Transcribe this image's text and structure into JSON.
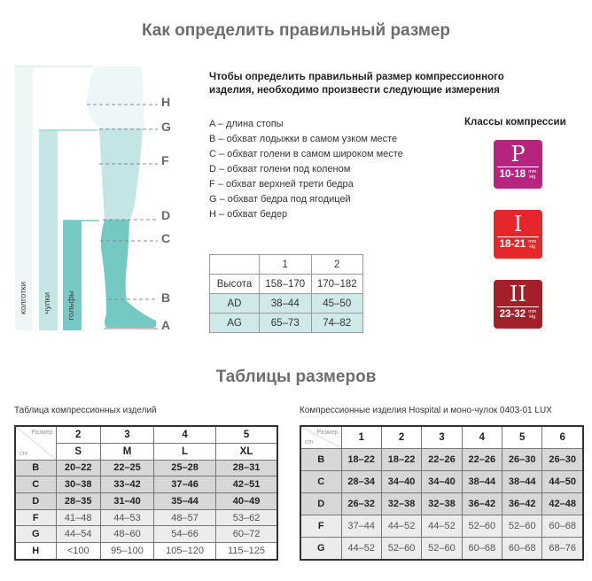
{
  "title": "Как определить правильный размер",
  "diagram": {
    "bars": [
      "колготки",
      "чулки",
      "гольфы"
    ],
    "points": [
      "H",
      "G",
      "F",
      "D",
      "C",
      "B",
      "A"
    ],
    "colors": {
      "tights": "#eef6f6",
      "stockings": "#c4e4e4",
      "knee": "#74c9c3"
    }
  },
  "intro": "Чтобы определить правильный размер компрессионного изделия, необходимо произвести следующие измерения",
  "measurements": [
    "A – длина стопы",
    "B – обхват лодыжки в самом узком месте",
    "C – обхват голени в самом широком месте",
    "D – обхват голени под коленом",
    "F – обхват верхней трети бедра",
    "G – обхват бедра под ягодицей",
    "H – обхват бедер"
  ],
  "height_table": {
    "header": [
      "",
      "1",
      "2"
    ],
    "rows": [
      [
        "Высота",
        "158–170",
        "170–182"
      ],
      [
        "AD",
        "38–44",
        "45–50"
      ],
      [
        "AG",
        "65–73",
        "74–82"
      ]
    ]
  },
  "compression": {
    "title": "Классы компрессии",
    "unit_top": "mm",
    "unit_bottom": "Hg",
    "classes": [
      {
        "symbol": "P",
        "range": "10-18",
        "color": "#b5247f"
      },
      {
        "symbol": "I",
        "range": "18-21",
        "color": "#e5262b"
      },
      {
        "symbol": "II",
        "range": "23-32",
        "color": "#a51f2b"
      }
    ]
  },
  "tables_title": "Таблицы размеров",
  "table1": {
    "caption": "Таблица компрессионных изделий",
    "corner_top": "Размер",
    "corner_bottom": "cm",
    "sizes": [
      "2",
      "3",
      "4",
      "5"
    ],
    "letters": [
      "S",
      "M",
      "L",
      "XL"
    ],
    "rows": [
      [
        "B",
        "20–22",
        "22–25",
        "25–28",
        "28–31"
      ],
      [
        "C",
        "30–38",
        "33–42",
        "37–46",
        "42–51"
      ],
      [
        "D",
        "28–35",
        "31–40",
        "35–44",
        "40–49"
      ],
      [
        "F",
        "41–48",
        "44–53",
        "48–57",
        "53–62"
      ],
      [
        "G",
        "44–54",
        "48–60",
        "54–66",
        "60–72"
      ],
      [
        "H",
        "<100",
        "95–100",
        "105–120",
        "115–125"
      ]
    ]
  },
  "table2": {
    "caption": "Компрессионные изделия Hospital и моно-чулок 0403-01 LUX",
    "corner_top": "Размер",
    "corner_bottom": "cm",
    "sizes": [
      "1",
      "2",
      "3",
      "4",
      "5",
      "6"
    ],
    "rows": [
      [
        "B",
        "18–22",
        "18–22",
        "22–26",
        "22–26",
        "26–30",
        "26–30"
      ],
      [
        "C",
        "28–34",
        "34–40",
        "34–40",
        "38–44",
        "38–44",
        "44–50"
      ],
      [
        "D",
        "26–32",
        "32–38",
        "32–38",
        "36–42",
        "36–42",
        "42–48"
      ],
      [
        "F",
        "37–44",
        "44–52",
        "44–52",
        "52–60",
        "52–60",
        "60–68"
      ],
      [
        "G",
        "44–52",
        "52–60",
        "52–60",
        "60–68",
        "60–68",
        "68–76"
      ]
    ]
  }
}
